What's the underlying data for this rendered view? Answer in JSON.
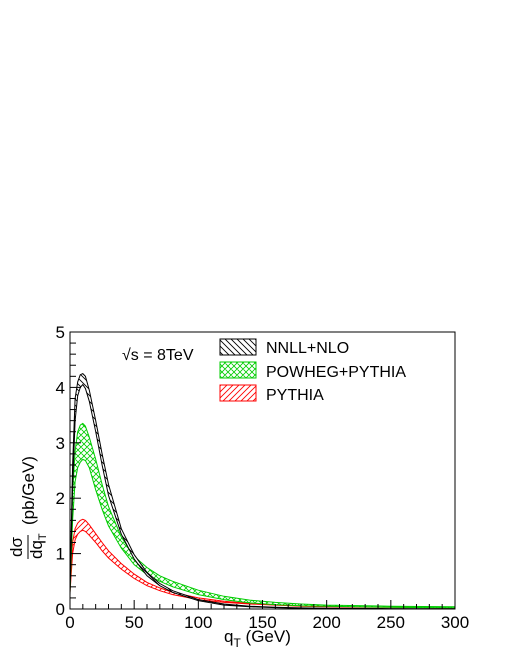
{
  "chart_data": {
    "type": "area",
    "title": "",
    "annotation": "√s = 8TeV",
    "xlabel": "q_T (GeV)",
    "xlabel_parts": {
      "q": "q",
      "sub": "T",
      "unit": " (GeV)"
    },
    "ylabel": "dσ/dq_T (pb/GeV)",
    "ylabel_parts": {
      "num": "dσ",
      "den": "dq",
      "den_sub": "T",
      "unit": "(pb/GeV)"
    },
    "xlim": [
      0,
      300
    ],
    "ylim": [
      0,
      5
    ],
    "xticks": [
      "0",
      "50",
      "100",
      "150",
      "200",
      "250",
      "300"
    ],
    "yticks": [
      "0",
      "1",
      "2",
      "3",
      "4",
      "5"
    ],
    "legend_position": "top-right",
    "grid": false,
    "x": [
      0,
      2,
      4,
      6,
      8,
      10,
      12,
      15,
      20,
      25,
      30,
      40,
      50,
      60,
      70,
      80,
      100,
      120,
      140,
      160,
      180,
      200,
      250,
      300
    ],
    "series": [
      {
        "name": "NNLL+NLO",
        "color": "#000000",
        "pattern": "hatch-diagonal-back",
        "lower": [
          0.25,
          2.2,
          3.4,
          3.85,
          4.0,
          4.05,
          3.98,
          3.75,
          3.2,
          2.6,
          2.05,
          1.35,
          0.9,
          0.6,
          0.42,
          0.3,
          0.15,
          0.07,
          0.04,
          0.025,
          0.015,
          0.01,
          0.005,
          0.003
        ],
        "upper": [
          0.35,
          2.6,
          3.8,
          4.1,
          4.23,
          4.25,
          4.2,
          3.95,
          3.4,
          2.8,
          2.25,
          1.45,
          0.98,
          0.66,
          0.46,
          0.33,
          0.17,
          0.09,
          0.05,
          0.03,
          0.02,
          0.015,
          0.008,
          0.005
        ]
      },
      {
        "name": "POWHEG+PYTHIA",
        "color": "#00cc00",
        "pattern": "crosshatch",
        "lower": [
          0.3,
          1.6,
          2.3,
          2.55,
          2.65,
          2.7,
          2.68,
          2.55,
          2.15,
          1.8,
          1.5,
          1.1,
          0.8,
          0.62,
          0.5,
          0.4,
          0.26,
          0.17,
          0.11,
          0.08,
          0.06,
          0.05,
          0.03,
          0.02
        ],
        "upper": [
          0.4,
          2.1,
          2.85,
          3.2,
          3.32,
          3.35,
          3.3,
          3.1,
          2.7,
          2.25,
          1.85,
          1.3,
          0.95,
          0.75,
          0.6,
          0.5,
          0.34,
          0.23,
          0.16,
          0.12,
          0.09,
          0.07,
          0.05,
          0.04
        ]
      },
      {
        "name": "PYTHIA",
        "color": "#ff0000",
        "pattern": "hatch-diagonal",
        "lower": [
          0.3,
          1.0,
          1.25,
          1.35,
          1.4,
          1.42,
          1.4,
          1.33,
          1.2,
          1.05,
          0.92,
          0.72,
          0.55,
          0.42,
          0.33,
          0.26,
          0.17,
          0.12,
          0.09,
          0.07,
          0.05,
          0.04,
          0.03,
          0.02
        ],
        "upper": [
          0.4,
          1.2,
          1.45,
          1.55,
          1.6,
          1.62,
          1.6,
          1.52,
          1.36,
          1.2,
          1.05,
          0.82,
          0.63,
          0.48,
          0.38,
          0.3,
          0.2,
          0.14,
          0.1,
          0.08,
          0.06,
          0.05,
          0.035,
          0.025
        ]
      }
    ]
  }
}
